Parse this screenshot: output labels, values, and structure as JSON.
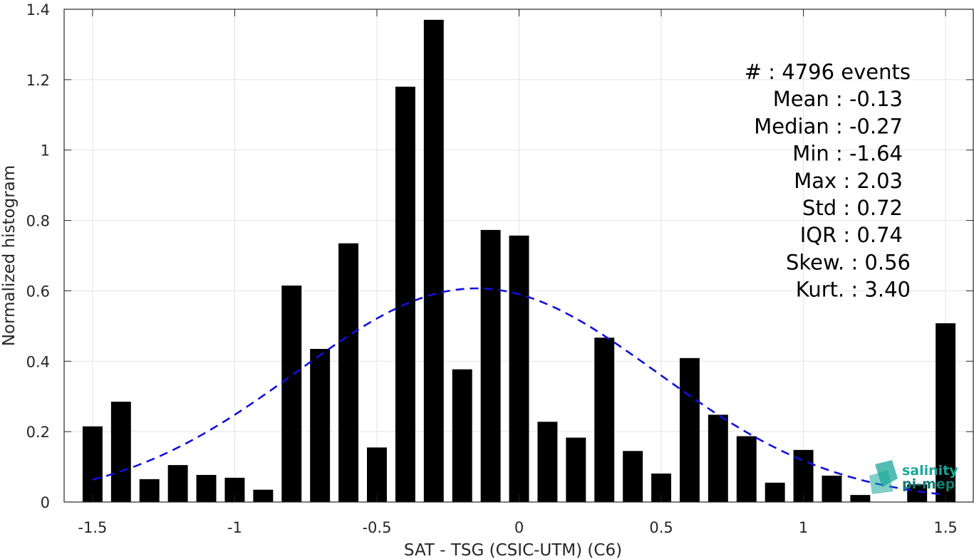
{
  "chart_data": {
    "type": "bar",
    "xlabel": "SAT - TSG (CSIC-UTM) (C6)",
    "ylabel": "Normalized histogram",
    "xlim": [
      -1.6,
      1.6
    ],
    "ylim": [
      0,
      1.4
    ],
    "xticks": [
      -1.5,
      -1,
      -0.5,
      0,
      0.5,
      1,
      1.5
    ],
    "xtick_labels": [
      "-1.5",
      "-1",
      "-0.5",
      "0",
      "0.5",
      "1",
      "1.5"
    ],
    "yticks": [
      0,
      0.2,
      0.4,
      0.6,
      0.8,
      1,
      1.2,
      1.4
    ],
    "ytick_labels": [
      "0",
      "0.2",
      "0.4",
      "0.6",
      "0.8",
      "1",
      "1.2",
      "1.4"
    ],
    "grid": true,
    "bar_color": "#000000",
    "bin_width": 0.1,
    "x": [
      -1.5,
      -1.4,
      -1.3,
      -1.2,
      -1.1,
      -1.0,
      -0.9,
      -0.8,
      -0.7,
      -0.6,
      -0.5,
      -0.4,
      -0.3,
      -0.2,
      -0.1,
      0.0,
      0.1,
      0.2,
      0.3,
      0.4,
      0.5,
      0.6,
      0.7,
      0.8,
      0.9,
      1.0,
      1.1,
      1.2,
      1.3,
      1.4,
      1.5
    ],
    "values": [
      0.215,
      0.285,
      0.065,
      0.105,
      0.077,
      0.069,
      0.035,
      0.615,
      0.435,
      0.735,
      0.155,
      1.18,
      1.37,
      0.377,
      0.773,
      0.757,
      0.228,
      0.183,
      0.467,
      0.145,
      0.081,
      0.409,
      0.248,
      0.187,
      0.055,
      0.148,
      0.075,
      0.02,
      0.0,
      0.05,
      0.508
    ],
    "fit_curve": {
      "style": "dashed",
      "color": "#1010e0",
      "mean": -0.15,
      "amplitude": 0.607,
      "sigma": 0.635,
      "x_range": [
        -1.5,
        1.5
      ]
    },
    "stats": [
      "#  : 4796 events",
      "Mean : -0.13",
      "Median : -0.27",
      "Min : -1.64",
      "Max : 2.03",
      "Std : 0.72",
      "IQR : 0.74",
      "Skew. : 0.56",
      "Kurt. : 3.40"
    ]
  },
  "logo": {
    "line1": "salinity",
    "line2": "pi-mep",
    "color": "#1aa79a"
  }
}
